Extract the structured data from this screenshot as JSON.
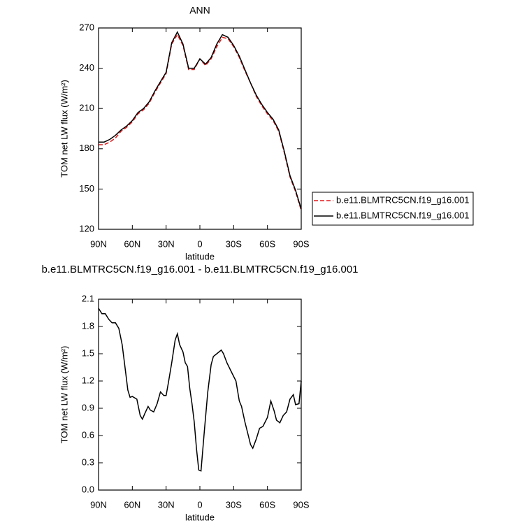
{
  "chart_data": [
    {
      "type": "line",
      "title": "ANN",
      "x_label": "latitude",
      "y_label": "TOM net LW flux (W/m²)",
      "x": [
        90,
        85,
        80,
        75,
        70,
        65,
        60,
        55,
        50,
        45,
        40,
        35,
        30,
        25,
        20,
        15,
        10,
        5,
        0,
        -5,
        -10,
        -15,
        -20,
        -25,
        -30,
        -35,
        -40,
        -45,
        -50,
        -55,
        -60,
        -65,
        -70,
        -75,
        -80,
        -85,
        -90
      ],
      "series": [
        {
          "name": "b.e11.BLMTRC5CN.f19_g16.001",
          "color": "#e41a1c",
          "line_style": "dashed",
          "values": [
            183,
            183,
            185,
            188,
            193,
            196,
            200,
            206,
            209,
            214,
            222,
            229,
            236,
            258,
            265,
            257,
            239,
            239,
            247,
            242,
            247,
            256,
            263,
            262,
            256,
            248,
            238,
            229,
            219,
            212,
            206,
            201,
            193,
            177,
            159,
            148,
            134
          ]
        },
        {
          "name": "b.e11.BLMTRC5CN.f19_g16.001",
          "color": "#000000",
          "line_style": "solid",
          "values": [
            185,
            185,
            187,
            190,
            194,
            197,
            201,
            207,
            210,
            215,
            223,
            230,
            237,
            259,
            267,
            258,
            240,
            240,
            247,
            243,
            248,
            258,
            265,
            263,
            257,
            249,
            239,
            229,
            220,
            213,
            207,
            202,
            194,
            178,
            160,
            149,
            135
          ]
        }
      ],
      "xlim": [
        90,
        -90
      ],
      "xticks": [
        {
          "value": 90,
          "label": "90N"
        },
        {
          "value": 60,
          "label": "60N"
        },
        {
          "value": 30,
          "label": "30N"
        },
        0,
        {
          "value": -30,
          "label": "30S"
        },
        {
          "value": -60,
          "label": "60S"
        },
        {
          "value": -90,
          "label": "90S"
        }
      ],
      "ylim": [
        120,
        270
      ],
      "yticks": [
        120,
        150,
        180,
        210,
        240,
        270
      ],
      "legend": "right"
    },
    {
      "type": "line",
      "title": "b.e11.BLMTRC5CN.f19_g16.001 - b.e11.BLMTRC5CN.f19_g16.001",
      "x_label": "latitude",
      "y_label": "TOM net LW flux (W/m²)",
      "x": [
        90,
        87,
        84,
        81,
        78,
        75,
        72,
        69,
        66,
        64,
        62,
        60,
        56,
        53,
        51,
        49,
        46,
        44,
        41,
        38,
        35,
        32,
        30,
        28,
        25,
        22,
        20,
        18,
        15,
        13,
        11,
        9,
        7,
        5,
        3,
        1,
        -1,
        -4,
        -7,
        -10,
        -12,
        -15,
        -19,
        -21,
        -24,
        -28,
        -32,
        -35,
        -37,
        -40,
        -43,
        -45,
        -47,
        -50,
        -53,
        -56,
        -60,
        -63,
        -66,
        -68,
        -71,
        -74,
        -77,
        -80,
        -83,
        -85,
        -88,
        -90
      ],
      "series": [
        {
          "name": "b.e11.BLMTRC5CN.f19_g16.001 - b.e11.BLMTRC5CN.f19_g16.001",
          "color": "#000000",
          "line_style": "solid",
          "values": [
            2.0,
            1.94,
            1.94,
            1.88,
            1.84,
            1.84,
            1.78,
            1.6,
            1.3,
            1.1,
            1.02,
            1.03,
            1.0,
            0.82,
            0.78,
            0.84,
            0.92,
            0.88,
            0.86,
            0.95,
            1.08,
            1.04,
            1.04,
            1.18,
            1.4,
            1.65,
            1.72,
            1.6,
            1.52,
            1.4,
            1.36,
            1.12,
            0.95,
            0.75,
            0.45,
            0.22,
            0.21,
            0.65,
            1.08,
            1.38,
            1.47,
            1.5,
            1.54,
            1.5,
            1.4,
            1.3,
            1.2,
            0.98,
            0.92,
            0.75,
            0.6,
            0.5,
            0.46,
            0.56,
            0.68,
            0.7,
            0.8,
            0.98,
            0.87,
            0.77,
            0.74,
            0.82,
            0.86,
            1.0,
            1.05,
            0.94,
            0.95,
            1.2
          ]
        }
      ],
      "xlim": [
        90,
        -90
      ],
      "xticks": [
        {
          "value": 90,
          "label": "90N"
        },
        {
          "value": 60,
          "label": "60N"
        },
        {
          "value": 30,
          "label": "30N"
        },
        0,
        {
          "value": -30,
          "label": "30S"
        },
        {
          "value": -60,
          "label": "60S"
        },
        {
          "value": -90,
          "label": "90S"
        }
      ],
      "ylim": [
        0,
        2.1
      ],
      "yticks": [
        {
          "value": 0,
          "label": "0.0"
        },
        0.3,
        0.6,
        0.9,
        1.2,
        1.5,
        1.8,
        2.1
      ]
    }
  ]
}
